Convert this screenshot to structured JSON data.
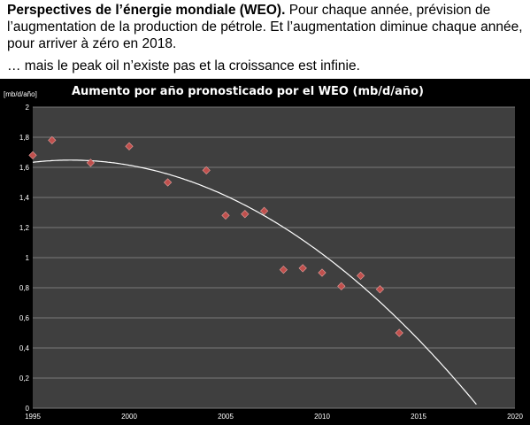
{
  "caption": {
    "bold_heading": "Perspectives de l’énergie mondiale (WEO).",
    "body": " Pour chaque année, prévision de l’augmentation de la production de pétrole. Et l’augmentation diminue chaque année, pour arriver à zéro en 2018.",
    "remark": "… mais le peak oil n’existe pas et la croissance est infinie."
  },
  "chart_data": {
    "type": "scatter",
    "title": "Aumento por año pronosticado por el WEO (mb/d/año)",
    "ylabel": "[mb/d/año]",
    "xlabel": "",
    "xlim": [
      1995,
      2020
    ],
    "ylim": [
      0,
      2
    ],
    "x_ticks": [
      "1995",
      "2000",
      "2005",
      "2010",
      "2015",
      "2020"
    ],
    "y_ticks": [
      "0",
      "0,2",
      "0,4",
      "0,6",
      "0,8",
      "1",
      "1,2",
      "1,4",
      "1,6",
      "1,8",
      "2"
    ],
    "grid": true,
    "points": [
      {
        "x": 1995,
        "y": 1.68
      },
      {
        "x": 1996,
        "y": 1.78
      },
      {
        "x": 1998,
        "y": 1.63
      },
      {
        "x": 2000,
        "y": 1.74
      },
      {
        "x": 2002,
        "y": 1.5
      },
      {
        "x": 2004,
        "y": 1.58
      },
      {
        "x": 2005,
        "y": 1.28
      },
      {
        "x": 2006,
        "y": 1.29
      },
      {
        "x": 2007,
        "y": 1.31
      },
      {
        "x": 2008,
        "y": 0.92
      },
      {
        "x": 2009,
        "y": 0.93
      },
      {
        "x": 2010,
        "y": 0.9
      },
      {
        "x": 2011,
        "y": 0.81
      },
      {
        "x": 2012,
        "y": 0.88
      },
      {
        "x": 2013,
        "y": 0.79
      },
      {
        "x": 2014,
        "y": 0.5
      }
    ],
    "trendline": {
      "type": "polynomial",
      "x": [
        1995,
        1996,
        2000,
        2005,
        2010,
        2015,
        2018
      ],
      "y": [
        1.64,
        1.65,
        1.6,
        1.4,
        1.03,
        0.49,
        0.0
      ]
    },
    "colors": {
      "background": "#000000",
      "plot_area": "#3f3f3f",
      "grid": "#7a7a7a",
      "marker": "#c0504d",
      "trendline": "#ffffff"
    }
  }
}
